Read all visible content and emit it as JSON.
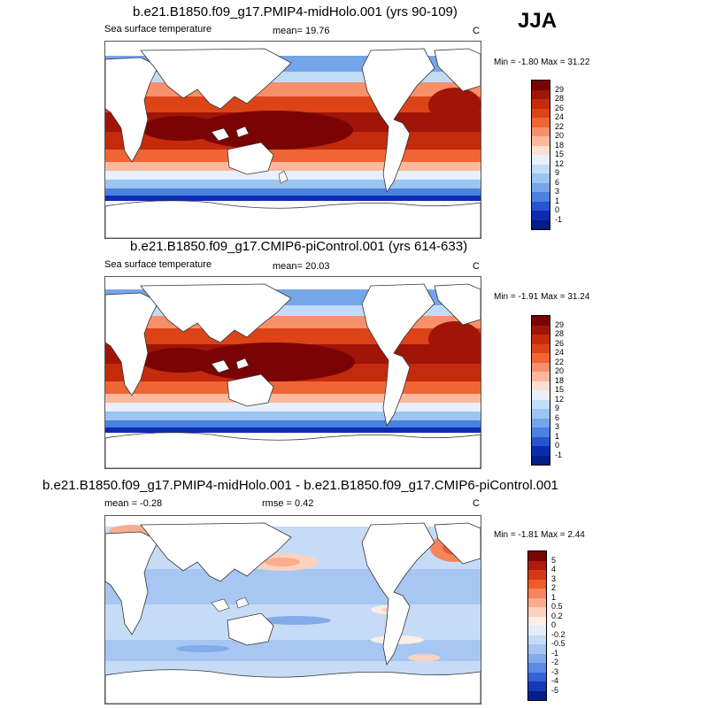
{
  "season": "JJA",
  "panels": [
    {
      "title": "b.e21.B1850.f09_g17.PMIP4-midHolo.001 (yrs 90-109)",
      "left_label": "Sea surface temperature",
      "center_label": "mean=  19.76",
      "units": "C",
      "minmax": "Min =  -1.80 Max =  31.22",
      "colorbar_labels": [
        "29",
        "28",
        "26",
        "24",
        "22",
        "20",
        "18",
        "15",
        "12",
        "9",
        "6",
        "3",
        "1",
        "0",
        "-1"
      ],
      "colorbar_colors": [
        "#7a0403",
        "#a01508",
        "#c42a0c",
        "#dc4418",
        "#ef6534",
        "#f7906b",
        "#fbb89c",
        "#fde0d0",
        "#e8f0fb",
        "#c2dcf5",
        "#9cc5f0",
        "#75a6ea",
        "#4a82e0",
        "#2755cf",
        "#0c2cb0",
        "#041c84"
      ]
    },
    {
      "title": "b.e21.B1850.f09_g17.CMIP6-piControl.001 (yrs 614-633)",
      "left_label": "Sea surface temperature",
      "center_label": "mean=  20.03",
      "units": "C",
      "minmax": "Min =  -1.91 Max =  31.24",
      "colorbar_labels": [
        "29",
        "28",
        "26",
        "24",
        "22",
        "20",
        "18",
        "15",
        "12",
        "9",
        "6",
        "3",
        "1",
        "0",
        "-1"
      ],
      "colorbar_colors": [
        "#7a0403",
        "#a01508",
        "#c42a0c",
        "#dc4418",
        "#ef6534",
        "#f7906b",
        "#fbb89c",
        "#fde0d0",
        "#e8f0fb",
        "#c2dcf5",
        "#9cc5f0",
        "#75a6ea",
        "#4a82e0",
        "#2755cf",
        "#0c2cb0",
        "#041c84"
      ]
    },
    {
      "title": "b.e21.B1850.f09_g17.PMIP4-midHolo.001 - b.e21.B1850.f09_g17.CMIP6-piControl.001",
      "left_label": "mean =  -0.28",
      "center_label": "rmse =   0.42",
      "units": "C",
      "minmax": "Min =  -1.81 Max =   2.44",
      "colorbar_labels": [
        "5",
        "4",
        "3",
        "2",
        "1",
        "0.5",
        "0.2",
        "0",
        "-0.2",
        "-0.5",
        "-1",
        "-2",
        "-3",
        "-4",
        "-5"
      ],
      "colorbar_colors": [
        "#7a0403",
        "#b01c09",
        "#d63a14",
        "#ee5c2c",
        "#f6855c",
        "#f9ad8f",
        "#fcd2bf",
        "#fdeee6",
        "#e3edfb",
        "#c6dcf6",
        "#a7c6f1",
        "#82abeb",
        "#5c8ae3",
        "#3463d6",
        "#1539b8",
        "#061f8a"
      ]
    }
  ]
}
